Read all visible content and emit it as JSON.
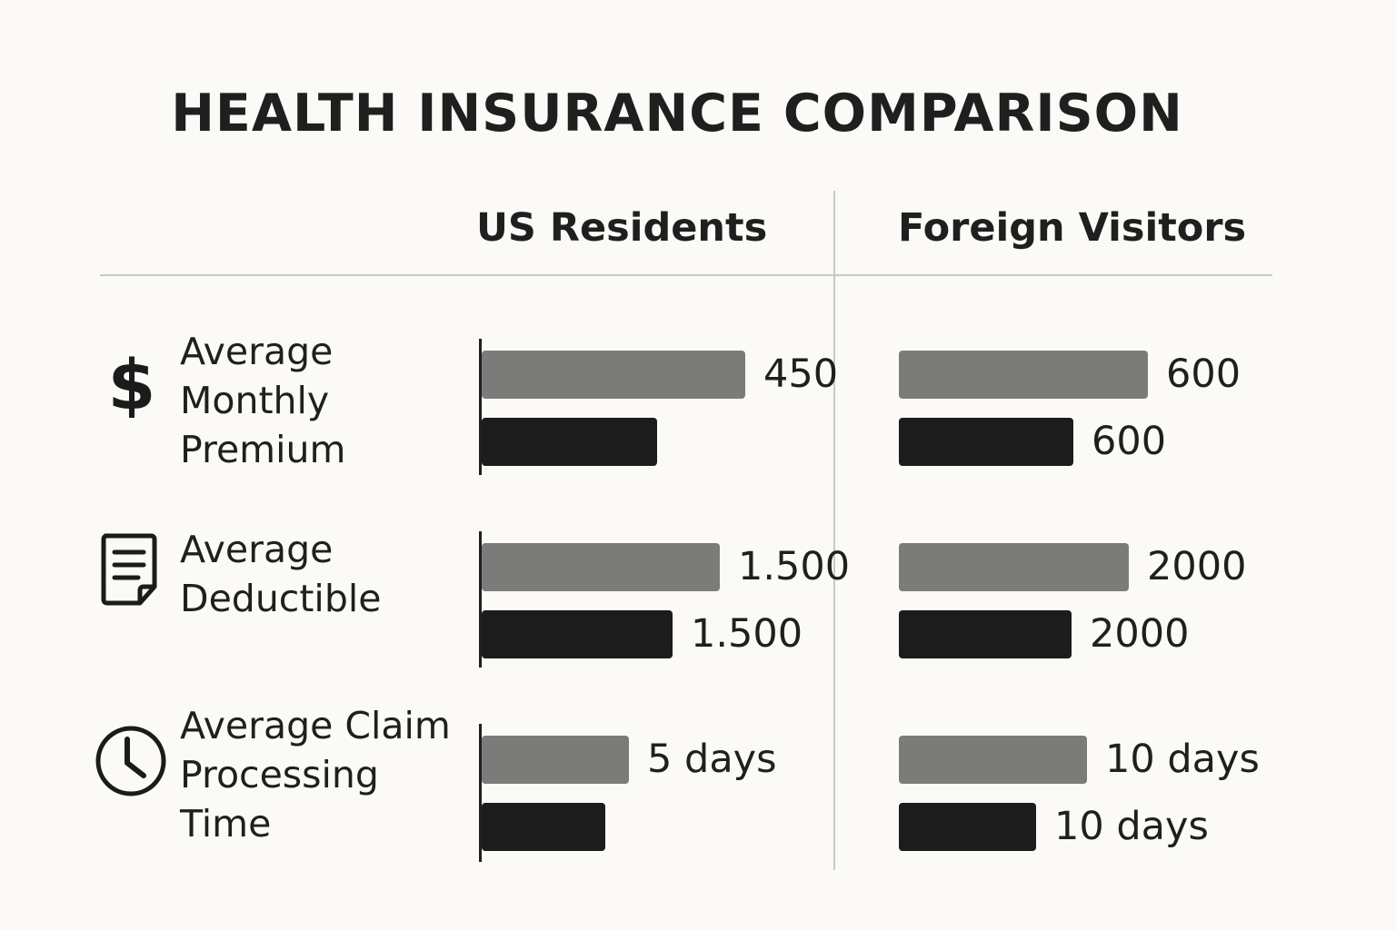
{
  "chart_data": {
    "type": "bar",
    "title": "HEALTH INSURANCE COMPARISON",
    "panels": [
      "US Residents",
      "Foreign Visitors"
    ],
    "metrics": [
      {
        "label": "Average\nMonthly\nPremium",
        "icon": "dollar-icon",
        "max": 600,
        "groups": [
          {
            "gray": {
              "value": 450,
              "label": "450"
            },
            "dark": {
              "value": 300,
              "label": ""
            }
          },
          {
            "gray": {
              "value": 600,
              "label": "600"
            },
            "dark": {
              "value": 420,
              "label": "600"
            }
          }
        ]
      },
      {
        "label": "Average\nDeductible",
        "icon": "document-icon",
        "max": 2000,
        "groups": [
          {
            "gray": {
              "value": 1500,
              "label": "1.500"
            },
            "dark": {
              "value": 1200,
              "label": "1.500"
            }
          },
          {
            "gray": {
              "value": 2000,
              "label": "2000"
            },
            "dark": {
              "value": 1500,
              "label": "2000"
            }
          }
        ]
      },
      {
        "label": "Average Claim\nProcessing\nTime",
        "icon": "clock-icon",
        "max": 10,
        "groups": [
          {
            "gray": {
              "value": 5,
              "label": "5 days"
            },
            "dark": {
              "value": 4.2,
              "label": ""
            }
          },
          {
            "gray": {
              "value": 10,
              "label": "10 days"
            },
            "dark": {
              "value": 7.3,
              "label": "10 days"
            }
          }
        ]
      }
    ]
  }
}
